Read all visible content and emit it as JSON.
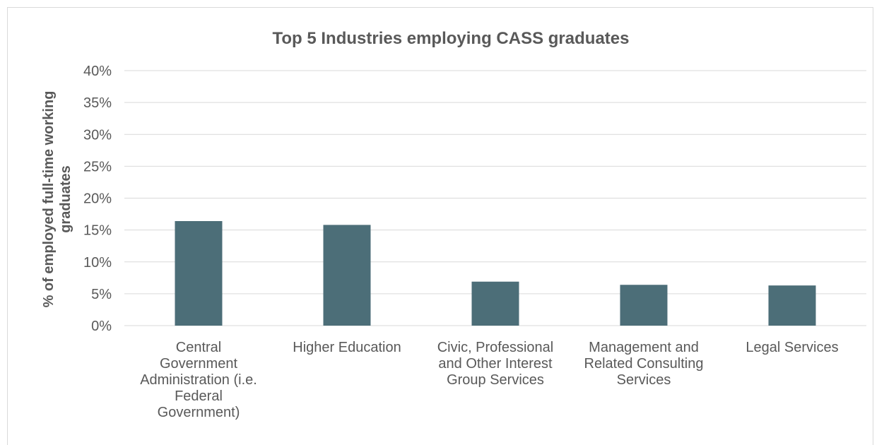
{
  "chart_data": {
    "type": "bar",
    "title": "Top 5 Industries employing CASS graduates",
    "ylabel": [
      "% of employed full-time working",
      "graduates"
    ],
    "xlabel": "",
    "categories": [
      [
        "Central",
        "Government",
        "Administration (i.e.",
        "Federal",
        "Government)"
      ],
      [
        "Higher Education"
      ],
      [
        "Civic, Professional",
        "and Other Interest",
        "Group Services"
      ],
      [
        "Management and",
        "Related Consulting",
        "Services"
      ],
      [
        "Legal Services"
      ]
    ],
    "values": [
      16.4,
      15.8,
      6.9,
      6.4,
      6.3
    ],
    "ylim": [
      0,
      40
    ],
    "yticks": [
      0,
      5,
      10,
      15,
      20,
      25,
      30,
      35,
      40
    ],
    "tick_suffix": "%",
    "grid": true,
    "legend": "none",
    "bar_color": "#4c6e78",
    "grid_color": "#d9d9d9",
    "text_color": "#595959"
  }
}
